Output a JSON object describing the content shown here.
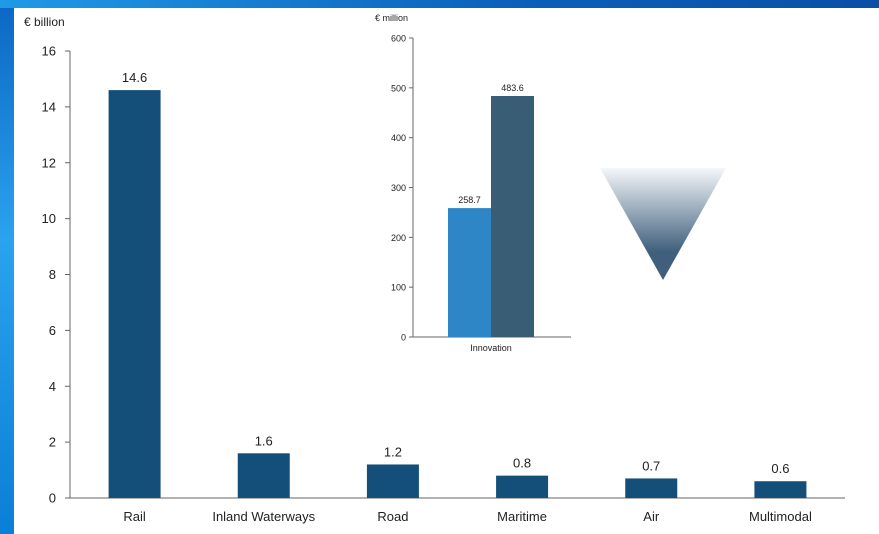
{
  "chart_data": [
    {
      "type": "bar",
      "ylabel": "€ billion",
      "categories": [
        "Rail",
        "Inland Waterways",
        "Road",
        "Maritime",
        "Air",
        "Multimodal"
      ],
      "values": [
        14.6,
        1.6,
        1.2,
        0.8,
        0.7,
        0.6
      ],
      "data_labels": [
        "14.6",
        "1.6",
        "1.2",
        "0.8",
        "0.7",
        "0.6"
      ],
      "ylim": [
        0,
        16
      ],
      "yticks": [
        0,
        2,
        4,
        6,
        8,
        10,
        12,
        14,
        16
      ],
      "grid": false,
      "bar_color": "#134f78"
    },
    {
      "type": "bar",
      "ylabel": "€ million",
      "categories": [
        "Innovation"
      ],
      "series": [
        {
          "values": [
            258.7
          ],
          "data_labels": [
            "258.7"
          ],
          "color": "#2f86c6"
        },
        {
          "values": [
            483.6
          ],
          "data_labels": [
            "483.6"
          ],
          "color": "#3a5d76"
        }
      ],
      "ylim": [
        0,
        600
      ],
      "yticks": [
        0,
        100,
        200,
        300,
        400,
        500,
        600
      ],
      "grid": false
    }
  ],
  "decoration": {
    "icon": "down-triangle-icon",
    "color_top": "#f4f7fa",
    "color_bottom": "#3f5f7c"
  }
}
